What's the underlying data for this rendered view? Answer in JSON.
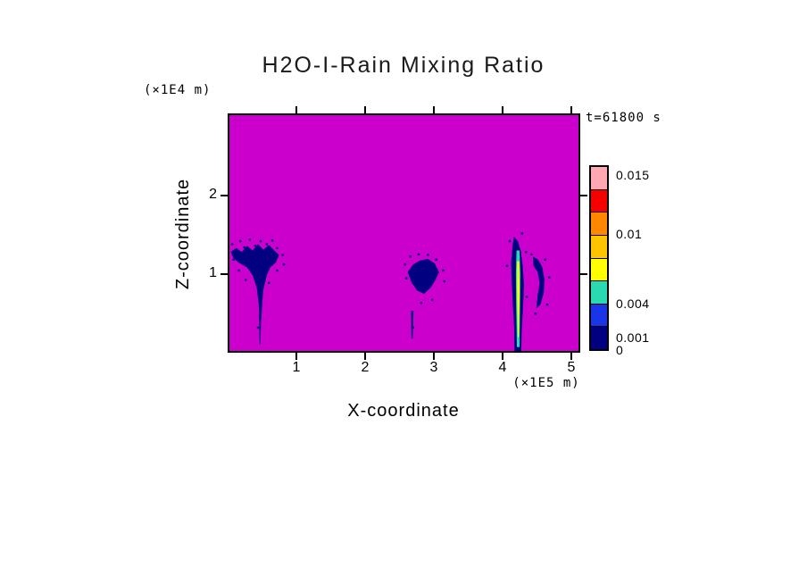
{
  "chart_data": {
    "type": "heatmap",
    "title": "H2O-I-Rain Mixing Ratio",
    "timestamp": "t=61800 s",
    "xlabel": "X-coordinate",
    "zlabel": "Z-coordinate",
    "x_unit": "(×1E5 m)",
    "z_unit": "(×1E4 m)",
    "xlim": [
      0,
      5.13
    ],
    "zlim": [
      0,
      3.05
    ],
    "xticks": [
      1,
      2,
      3,
      4,
      5
    ],
    "zticks": [
      1,
      2
    ],
    "background_value": 0,
    "background_color": "#CC00CC",
    "feature_color": "#000080",
    "labeled_levels": [
      0,
      0.001,
      0.004,
      0.01,
      0.015
    ],
    "colorbar": {
      "segments_top_to_bottom": [
        "#FFA8B4",
        "#F80000",
        "#FF8800",
        "#FFC400",
        "#FFFF00",
        "#2BD9B0",
        "#1A35E8",
        "#000080"
      ],
      "labels": [
        {
          "text": "0.015",
          "pos": 0.053
        },
        {
          "text": "0.01",
          "pos": 0.37
        },
        {
          "text": "0.004",
          "pos": 0.745
        },
        {
          "text": "0.001",
          "pos": 0.928
        },
        {
          "text": "0",
          "pos": 0.995
        }
      ]
    },
    "features": [
      {
        "name": "rain-shaft-left",
        "value_band": "0.001-0.004",
        "color": "#000080",
        "points": [
          [
            0.02,
            1.28
          ],
          [
            0.1,
            1.33
          ],
          [
            0.18,
            1.28
          ],
          [
            0.26,
            1.36
          ],
          [
            0.34,
            1.3
          ],
          [
            0.42,
            1.38
          ],
          [
            0.5,
            1.31
          ],
          [
            0.58,
            1.37
          ],
          [
            0.66,
            1.3
          ],
          [
            0.73,
            1.24
          ],
          [
            0.68,
            1.14
          ],
          [
            0.6,
            1.08
          ],
          [
            0.55,
            0.98
          ],
          [
            0.5,
            0.8
          ],
          [
            0.48,
            0.6
          ],
          [
            0.47,
            0.42
          ],
          [
            0.44,
            0.42
          ],
          [
            0.43,
            0.62
          ],
          [
            0.4,
            0.82
          ],
          [
            0.34,
            0.98
          ],
          [
            0.26,
            1.08
          ],
          [
            0.14,
            1.14
          ],
          [
            0.06,
            1.2
          ]
        ]
      },
      {
        "name": "rain-streak-left",
        "value_band": "0.001-0.004",
        "color": "#000080",
        "points": [
          [
            0.435,
            0.48
          ],
          [
            0.468,
            0.48
          ],
          [
            0.455,
            0.08
          ],
          [
            0.444,
            0.08
          ]
        ]
      },
      {
        "name": "rain-patch-middle",
        "value_band": "0.001-0.004",
        "color": "#000080",
        "points": [
          [
            2.62,
            1.02
          ],
          [
            2.7,
            1.12
          ],
          [
            2.8,
            1.17
          ],
          [
            2.92,
            1.19
          ],
          [
            3.02,
            1.13
          ],
          [
            3.08,
            1.02
          ],
          [
            3.03,
            0.92
          ],
          [
            2.96,
            0.82
          ],
          [
            2.86,
            0.74
          ],
          [
            2.76,
            0.78
          ],
          [
            2.68,
            0.88
          ]
        ]
      },
      {
        "name": "rain-streak-middle",
        "value_band": "0.001-0.004",
        "color": "#000080",
        "points": [
          [
            2.67,
            0.52
          ],
          [
            2.705,
            0.52
          ],
          [
            2.695,
            0.16
          ],
          [
            2.675,
            0.16
          ]
        ]
      },
      {
        "name": "rain-shaft-main-outer",
        "value_band": "0.001-0.004",
        "color": "#000080",
        "points": [
          [
            4.18,
            1.48
          ],
          [
            4.24,
            1.42
          ],
          [
            4.28,
            1.3
          ],
          [
            4.31,
            1.1
          ],
          [
            4.33,
            0.85
          ],
          [
            4.315,
            0.55
          ],
          [
            4.295,
            0.25
          ],
          [
            4.29,
            0.0
          ],
          [
            4.19,
            0.0
          ],
          [
            4.185,
            0.3
          ],
          [
            4.165,
            0.6
          ],
          [
            4.15,
            0.9
          ],
          [
            4.14,
            1.15
          ],
          [
            4.16,
            1.35
          ]
        ]
      },
      {
        "name": "rain-shaft-main-mid",
        "value_band": "0.004",
        "color": "#2BD9B0",
        "points": [
          [
            4.22,
            1.3
          ],
          [
            4.265,
            1.3
          ],
          [
            4.275,
            1.0
          ],
          [
            4.27,
            0.5
          ],
          [
            4.265,
            0.05
          ],
          [
            4.225,
            0.05
          ],
          [
            4.215,
            0.6
          ],
          [
            4.21,
            1.0
          ]
        ]
      },
      {
        "name": "rain-shaft-main-core",
        "value_band": "0.004-0.01",
        "color": "#FFFF00",
        "points": [
          [
            4.228,
            1.16
          ],
          [
            4.258,
            1.16
          ],
          [
            4.265,
            0.75
          ],
          [
            4.252,
            0.18
          ],
          [
            4.238,
            0.18
          ],
          [
            4.228,
            0.7
          ]
        ]
      },
      {
        "name": "rain-patch-right",
        "value_band": "0.001-0.004",
        "color": "#000080",
        "points": [
          [
            4.46,
            1.22
          ],
          [
            4.54,
            1.18
          ],
          [
            4.6,
            1.08
          ],
          [
            4.63,
            0.92
          ],
          [
            4.62,
            0.75
          ],
          [
            4.57,
            0.6
          ],
          [
            4.51,
            0.55
          ],
          [
            4.53,
            0.72
          ],
          [
            4.56,
            0.88
          ],
          [
            4.53,
            1.02
          ],
          [
            4.47,
            1.1
          ]
        ]
      }
    ],
    "speckles": [
      [
        0.04,
        1.38
      ],
      [
        0.1,
        1.3
      ],
      [
        0.16,
        1.42
      ],
      [
        0.22,
        1.34
      ],
      [
        0.3,
        1.44
      ],
      [
        0.38,
        1.36
      ],
      [
        0.46,
        1.42
      ],
      [
        0.55,
        1.38
      ],
      [
        0.63,
        1.43
      ],
      [
        0.7,
        1.33
      ],
      [
        0.78,
        1.24
      ],
      [
        0.06,
        1.18
      ],
      [
        0.8,
        1.12
      ],
      [
        0.14,
        1.04
      ],
      [
        0.7,
        1.04
      ],
      [
        0.24,
        0.92
      ],
      [
        0.58,
        0.88
      ],
      [
        0.42,
        0.3
      ],
      [
        2.58,
        1.12
      ],
      [
        2.66,
        1.22
      ],
      [
        2.78,
        1.25
      ],
      [
        2.92,
        1.24
      ],
      [
        3.04,
        1.18
      ],
      [
        3.14,
        1.04
      ],
      [
        3.16,
        0.9
      ],
      [
        2.6,
        0.94
      ],
      [
        2.98,
        0.66
      ],
      [
        2.82,
        0.62
      ],
      [
        2.7,
        0.3
      ],
      [
        4.12,
        1.42
      ],
      [
        4.3,
        1.52
      ],
      [
        4.36,
        1.28
      ],
      [
        4.08,
        1.1
      ],
      [
        4.37,
        0.7
      ],
      [
        4.44,
        1.25
      ],
      [
        4.64,
        1.18
      ],
      [
        4.7,
        0.95
      ],
      [
        4.67,
        0.6
      ],
      [
        4.5,
        0.48
      ]
    ]
  }
}
